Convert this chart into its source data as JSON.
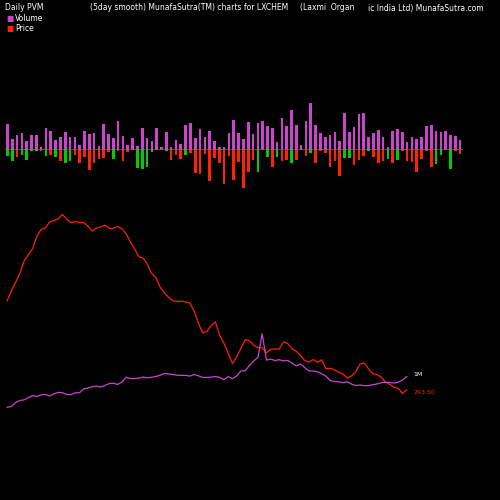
{
  "title_left": "Daily PVM",
  "title_center": "(5day smooth) MunafaSutra(TM) charts for LXCHEM",
  "title_right_1": "(Laxmi  Organ",
  "title_right_2": "ic India Ltd) MunafaSutra.com",
  "legend_volume_color": "#cc44cc",
  "legend_price_color": "#ff2200",
  "background_color": "#000000",
  "label_1M": "1M",
  "label_price": "293.50",
  "n_points": 95
}
